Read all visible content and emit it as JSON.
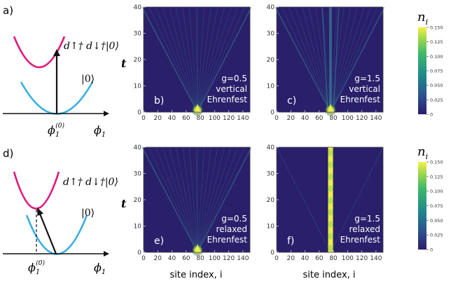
{
  "schematics": [
    {
      "panel_label": "a)",
      "excited_state_label": "d↑† d↓†|0⟩",
      "ground_state_label": "|0⟩",
      "x_tick_label": "ϕ",
      "x_tick_sub": "1",
      "x_tick_sup": "(0)",
      "axis_label": "ϕ",
      "axis_sub": "1",
      "transition": "vertical"
    },
    {
      "panel_label": "d)",
      "excited_state_label": "d↑† d↓†|0⟩",
      "ground_state_label": "|0⟩",
      "x_tick_label": "ϕ",
      "x_tick_sub": "1",
      "x_tick_sup": "(0)",
      "axis_label": "ϕ",
      "axis_sub": "1",
      "transition": "relaxed"
    }
  ],
  "colors": {
    "excited_curve": "#e0187a",
    "ground_curve": "#38b0e0",
    "map_background": "#2a1f6b",
    "map_peak": "#f4f04a"
  },
  "heatmaps": {
    "y_axis_label": "t",
    "x_axis_label": "site index, i",
    "x_ticks": [
      "0",
      "20",
      "40",
      "60",
      "80",
      "100",
      "120",
      "140"
    ],
    "y_ticks": [
      "0",
      "10",
      "20",
      "30",
      "40"
    ],
    "panels": [
      {
        "id": "b",
        "panel_label": "b)",
        "g_label": "g=0.5",
        "mode": "vertical",
        "method": "Ehrenfest"
      },
      {
        "id": "c",
        "panel_label": "c)",
        "g_label": "g=1.5",
        "mode": "vertical",
        "method": "Ehrenfest"
      },
      {
        "id": "e",
        "panel_label": "e)",
        "g_label": "g=0.5",
        "mode": "relaxed",
        "method": "Ehrenfest"
      },
      {
        "id": "f",
        "panel_label": "f)",
        "g_label": "g=1.5",
        "mode": "relaxed",
        "method": "Ehrenfest"
      }
    ]
  },
  "colorbars": [
    {
      "label": "n",
      "label_sub": "i",
      "ticks": [
        "0.150",
        "0.125",
        "0.100",
        "0.075",
        "0.050",
        "0.025",
        "0"
      ]
    },
    {
      "label": "n",
      "label_sub": "i",
      "ticks": [
        "0.150",
        "0.125",
        "0.100",
        "0.075",
        "0.050",
        "0.025",
        "0"
      ]
    }
  ],
  "chart_data": [
    {
      "type": "heatmap",
      "panel": "b",
      "x_range": [
        0,
        150
      ],
      "y_range": [
        0,
        40
      ],
      "z_range": [
        0,
        0.15
      ],
      "source_site": 76,
      "features": "light-cone spreading from site 76",
      "note": "g=0.5 vertical Ehrenfest"
    },
    {
      "type": "heatmap",
      "panel": "c",
      "x_range": [
        0,
        150
      ],
      "y_range": [
        0,
        40
      ],
      "z_range": [
        0,
        0.15
      ],
      "source_site": 76,
      "features": "light-cone plus persistent density at source site",
      "note": "g=1.5 vertical Ehrenfest"
    },
    {
      "type": "heatmap",
      "panel": "e",
      "x_range": [
        0,
        150
      ],
      "y_range": [
        0,
        40
      ],
      "z_range": [
        0,
        0.15
      ],
      "source_site": 76,
      "features": "light-cone spreading from site 76",
      "note": "g=0.5 relaxed Ehrenfest"
    },
    {
      "type": "heatmap",
      "panel": "f",
      "x_range": [
        0,
        150
      ],
      "y_range": [
        0,
        40
      ],
      "z_range": [
        0,
        0.15
      ],
      "source_site": 76,
      "features": "localized at site 76 for all t",
      "note": "g=1.5 relaxed Ehrenfest"
    }
  ]
}
